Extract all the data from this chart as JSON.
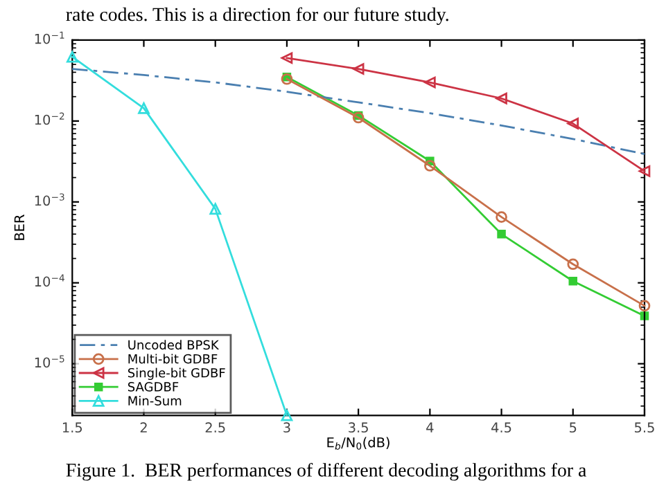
{
  "chart_data": {
    "type": "line",
    "xlabel": "E$_{b}$/N$_{0}$(dB)",
    "ylabel": "BER",
    "annotations": [
      "rate codes. This is a direction for our future study.",
      "Figure 1.  BER performances of different decoding algorithms for a"
    ],
    "log": "y",
    "xlim": [
      1.5,
      5.5
    ],
    "ylim": [
      2.3e-06,
      0.1
    ],
    "xticks": [
      1.5,
      2,
      2.5,
      3,
      3.5,
      4,
      4.5,
      5,
      5.5
    ],
    "yticks": [
      {
        "value": 0.1,
        "label": "10$^{−1}$"
      },
      {
        "value": 0.01,
        "label": "10$^{−2}$"
      },
      {
        "value": 0.001,
        "label": "10$^{−3}$"
      },
      {
        "value": 0.0001,
        "label": "10$^{−4}$"
      },
      {
        "value": 1e-05,
        "label": "10$^{−5}$"
      }
    ],
    "grid": false,
    "legend": "bottom left",
    "series": [
      {
        "name": "Uncoded BPSK",
        "color": "#4a7fb0",
        "marker": "none",
        "line_style": "dashed",
        "x": [
          1.5,
          2,
          2.5,
          3,
          3.5,
          4,
          4.5,
          5,
          5.5
        ],
        "values": [
          0.044,
          0.037,
          0.03,
          0.023,
          0.017,
          0.0125,
          0.0088,
          0.006,
          0.0039
        ]
      },
      {
        "name": "Multi-bit GDBF",
        "color": "#c8704a",
        "marker": "circle",
        "line_style": "solid",
        "x": [
          3,
          3.5,
          4,
          4.5,
          5,
          5.5
        ],
        "values": [
          0.033,
          0.011,
          0.0028,
          0.00065,
          0.00017,
          5.2e-05
        ]
      },
      {
        "name": "Single-bit GDBF",
        "color": "#cc3344",
        "marker": "triangle",
        "line_style": "solid",
        "x": [
          3,
          3.5,
          4,
          4.5,
          5,
          5.5
        ],
        "values": [
          0.06,
          0.044,
          0.03,
          0.019,
          0.0093,
          0.0024
        ]
      },
      {
        "name": "SAGDBF",
        "color": "#33cc33",
        "marker": "square",
        "line_style": "solid",
        "x": [
          3,
          3.5,
          4,
          4.5,
          5,
          5.5
        ],
        "values": [
          0.035,
          0.0117,
          0.0032,
          0.0004,
          0.000105,
          3.9e-05
        ]
      },
      {
        "name": "Min-Sum",
        "color": "#33dddd",
        "marker": "triangle",
        "line_style": "solid",
        "x": [
          1.5,
          2,
          2.5,
          3
        ],
        "values": [
          0.062,
          0.0144,
          0.00082,
          2.3e-06
        ]
      }
    ]
  }
}
